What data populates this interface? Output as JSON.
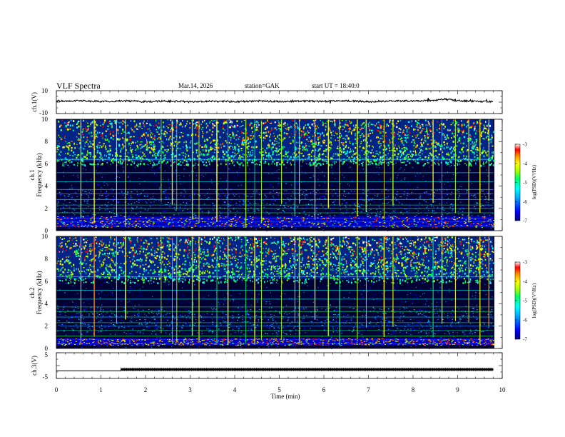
{
  "header": {
    "title": "VLF  Spectra",
    "date": "Mar.14,  2026",
    "station": "station=GAK",
    "start": "start  UT  =    18:40:0"
  },
  "colors": {
    "spectrogram_background": "#000033",
    "trace": "#000000",
    "colormap_stops": [
      "#000080",
      "#0000ff",
      "#00aaff",
      "#00ffff",
      "#00ff66",
      "#aaff00",
      "#ffff00",
      "#ff8800",
      "#ff0000",
      "#ffffff"
    ]
  },
  "chart_data": [
    {
      "id": "ch1-voltage",
      "type": "line",
      "ylabel": "ch.1(V)",
      "ylim": [
        -10,
        10
      ],
      "ytick_labels": [
        "10",
        "-10"
      ],
      "xlim": [
        0,
        10
      ],
      "x": [
        0.0,
        0.5,
        1.0,
        1.5,
        2.0,
        2.5,
        3.0,
        3.5,
        4.0,
        4.5,
        5.0,
        5.5,
        6.0,
        6.5,
        7.0,
        7.5,
        8.0,
        8.5,
        8.7,
        9.0,
        9.5,
        9.8
      ],
      "values": [
        1.0,
        1.2,
        0.6,
        1.0,
        0.4,
        0.9,
        0.2,
        0.8,
        0.4,
        1.0,
        0.6,
        0.9,
        0.7,
        1.1,
        0.4,
        0.9,
        1.0,
        1.6,
        2.8,
        1.2,
        0.6,
        0.3
      ]
    },
    {
      "id": "ch1-spectrogram",
      "type": "heatmap",
      "ylabel": "ch.1\nFrequency (kHz)",
      "ylabel_lines": [
        "ch.1",
        "Frequency  (kHz)"
      ],
      "ylim": [
        0,
        10
      ],
      "ytick_labels": [
        "0",
        "2",
        "4",
        "6",
        "8",
        "10"
      ],
      "xlim": [
        0,
        9.8
      ],
      "colorbar": {
        "label": "log(PSD)(V²/Hz)",
        "range": [
          -7,
          -3
        ],
        "tick_labels": [
          "-3",
          "-4",
          "-5",
          "-6",
          "-7"
        ]
      },
      "emission_top_khz": 6.2,
      "intense_band_khz": [
        0.3,
        1.3
      ],
      "spike_times_min": [
        0.55,
        0.85,
        1.35,
        1.55,
        2.35,
        2.6,
        2.7,
        3.05,
        3.2,
        3.6,
        3.85,
        4.25,
        4.45,
        4.6,
        5.05,
        5.35,
        5.45,
        5.8,
        6.1,
        6.35,
        6.75,
        6.95,
        7.35,
        7.55,
        8.45,
        8.65,
        8.95,
        9.25,
        9.5,
        9.7
      ]
    },
    {
      "id": "ch2-spectrogram",
      "type": "heatmap",
      "ylabel": "ch.2\nFrequency (kHz)",
      "ylabel_lines": [
        "ch.2",
        "Frequency  (kHz)"
      ],
      "ylim": [
        0,
        10
      ],
      "ytick_labels": [
        "0",
        "2",
        "4",
        "6",
        "8",
        "10"
      ],
      "xlim": [
        0,
        9.8
      ],
      "colorbar": {
        "label": "log(PSD)(V²/Hz)",
        "range": [
          -7,
          -3
        ],
        "tick_labels": [
          "-3",
          "-4",
          "-5",
          "-6",
          "-7"
        ]
      },
      "emission_top_khz": 6.2,
      "intense_band_khz": [
        0.3,
        0.9
      ],
      "spike_times_min": [
        0.55,
        0.85,
        1.35,
        1.55,
        2.35,
        2.6,
        2.7,
        3.05,
        3.2,
        3.6,
        3.85,
        4.25,
        4.45,
        4.6,
        5.05,
        5.35,
        5.45,
        5.8,
        6.1,
        6.35,
        6.75,
        6.95,
        7.35,
        7.55,
        8.45,
        8.65,
        8.95,
        9.25,
        9.5,
        9.7
      ]
    },
    {
      "id": "ch3-voltage",
      "type": "line",
      "ylabel": "ch.3(V)",
      "ylim": [
        -5,
        5
      ],
      "ytick_labels": [
        "5",
        "-5"
      ],
      "xlim": [
        0,
        10
      ],
      "xlabel": "Time  (min)",
      "xtick_labels": [
        "0",
        "1",
        "2",
        "3",
        "4",
        "5",
        "6",
        "7",
        "8",
        "9",
        "10"
      ],
      "x": [
        0.0,
        1.45,
        1.45,
        9.8
      ],
      "values": [
        -2.0,
        -2.0,
        -1.5,
        -1.5
      ],
      "pulse_train_start_min": 1.45
    }
  ]
}
